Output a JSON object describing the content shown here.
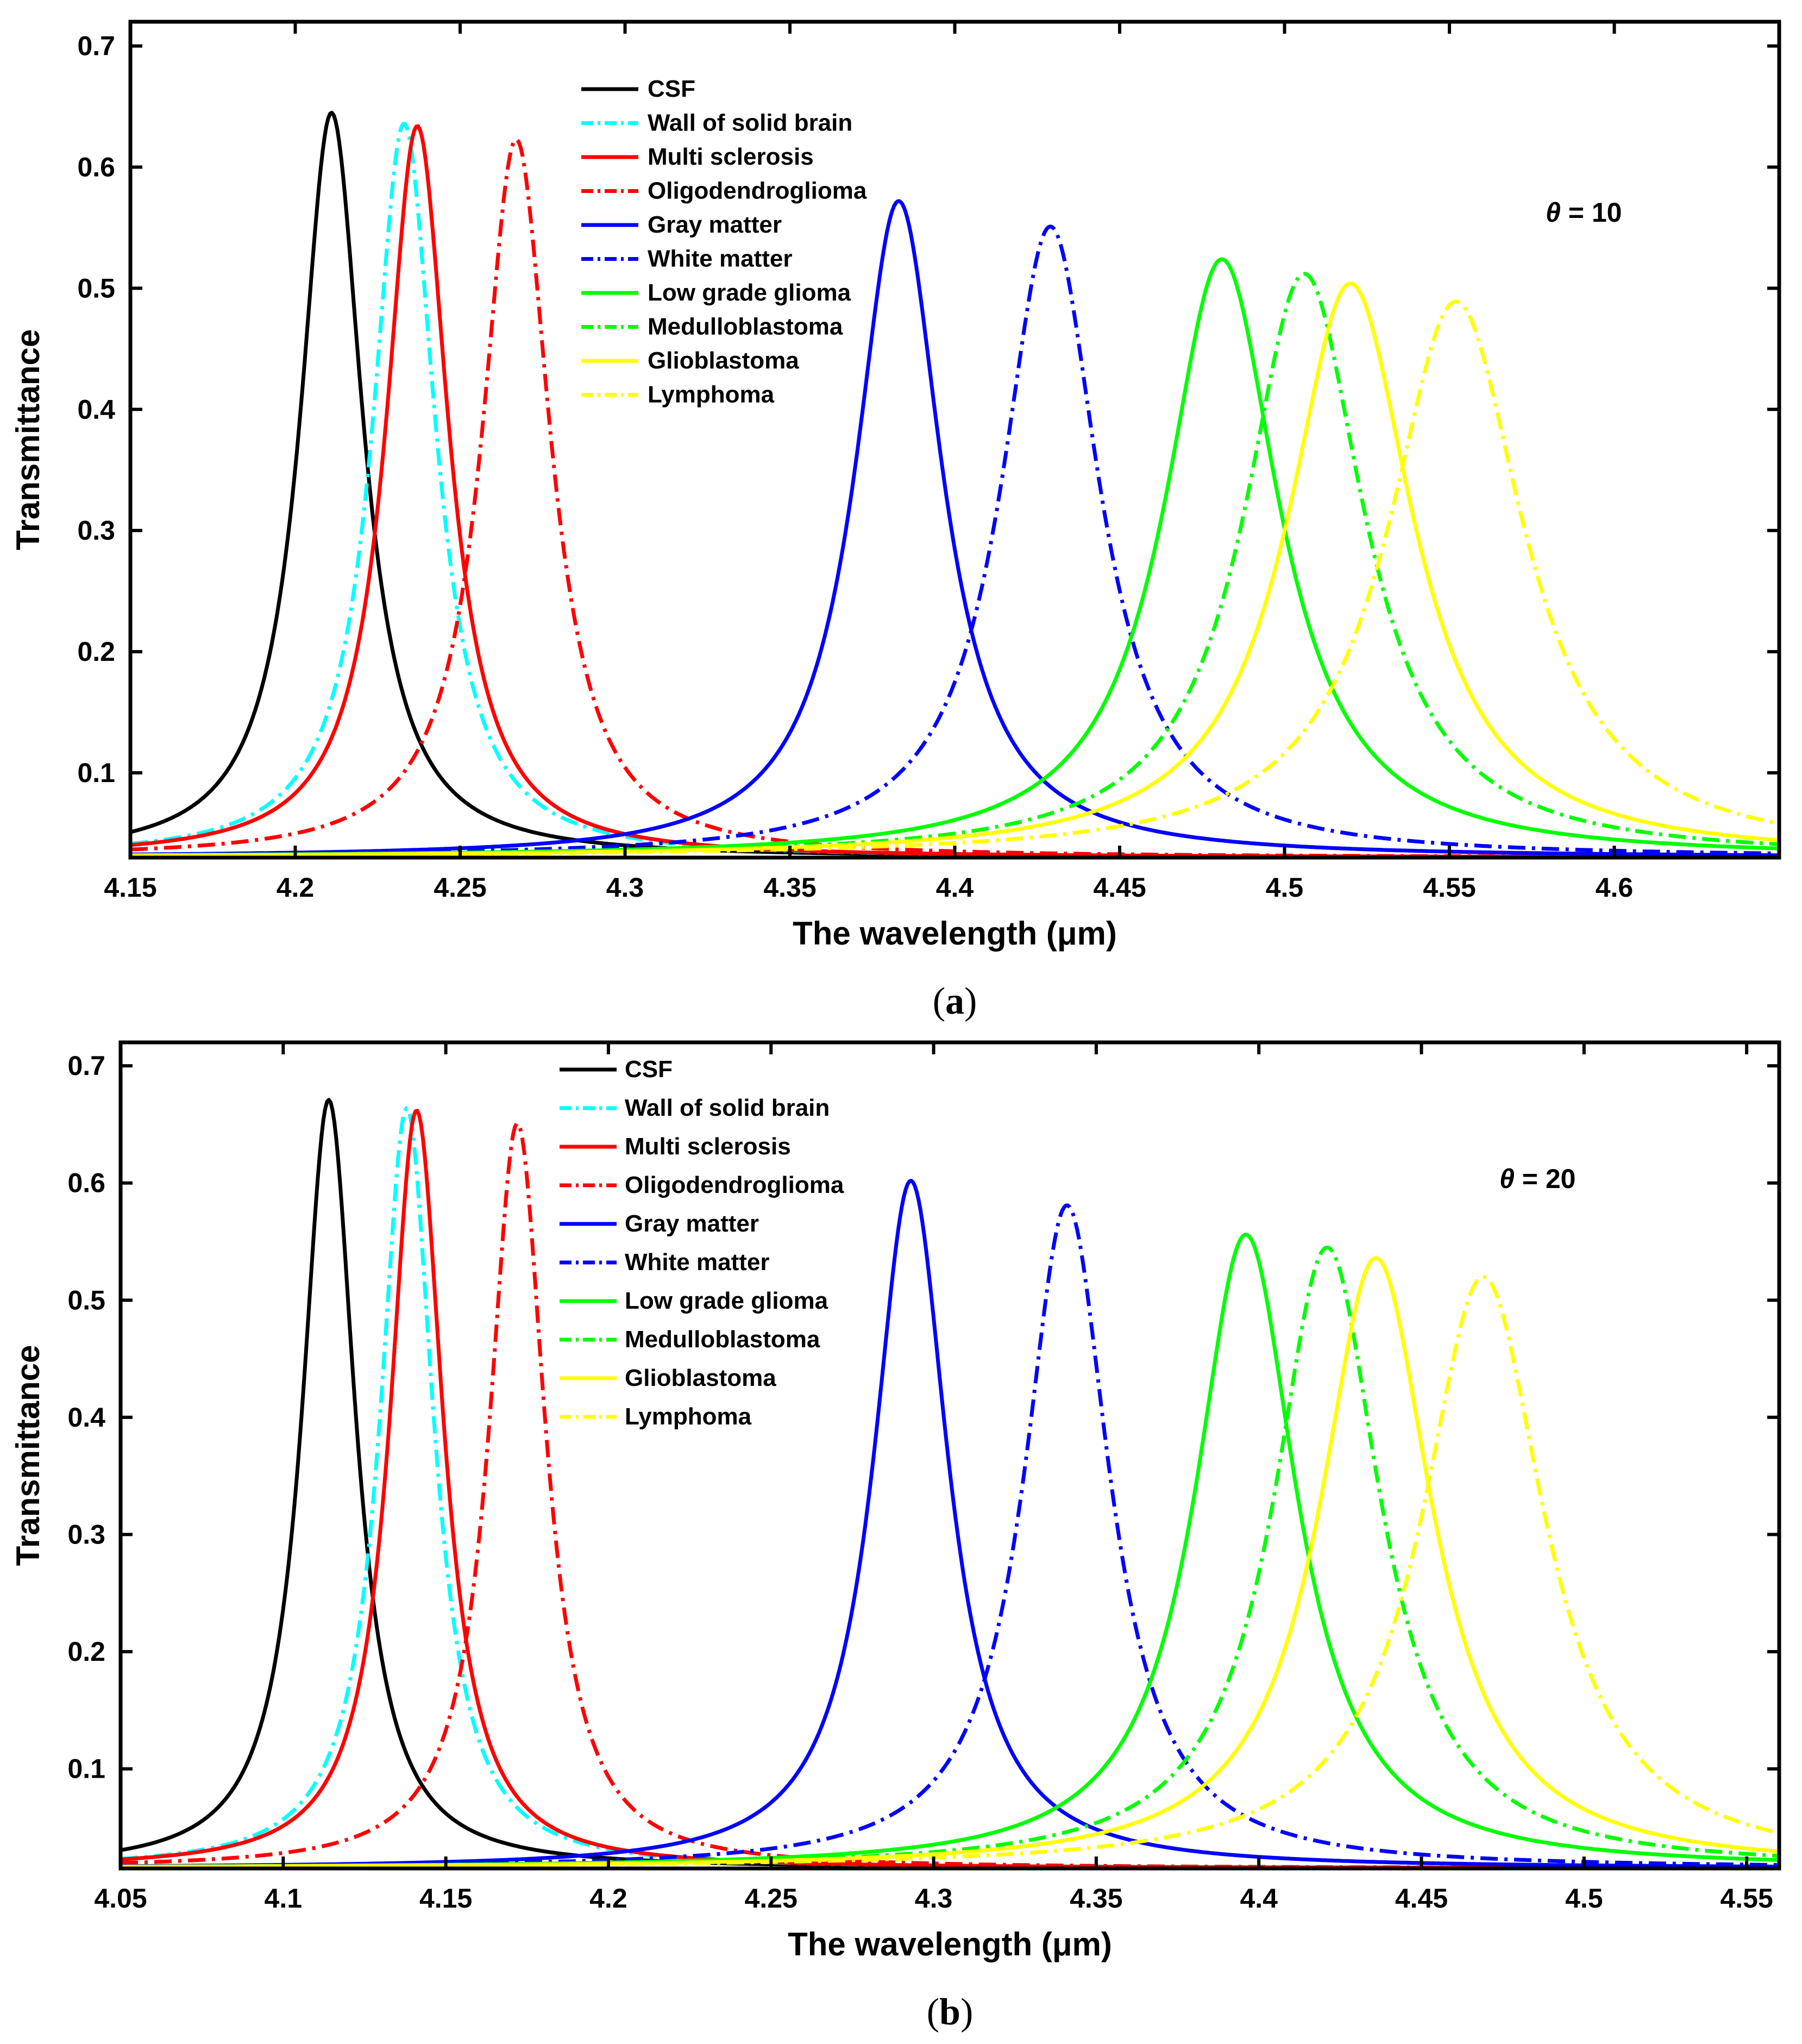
{
  "chart_data": [
    {
      "type": "line",
      "panel": "a",
      "caption": {
        "open": "(",
        "letter": "a",
        "close": ")"
      },
      "xlabel": "The wavelength (μm)",
      "ylabel": "Transmittance",
      "annotation": {
        "symbol": "θ",
        "text": " = 10"
      },
      "xlim": [
        4.15,
        4.65
      ],
      "ylim": [
        0.03,
        0.72
      ],
      "xticks": [
        4.15,
        4.2,
        4.25,
        4.3,
        4.35,
        4.4,
        4.45,
        4.5,
        4.55,
        4.6
      ],
      "xtick_labels": [
        "4.15",
        "4.2",
        "4.25",
        "4.3",
        "4.35",
        "4.4",
        "4.45",
        "4.5",
        "4.55",
        "4.6"
      ],
      "yticks": [
        0.1,
        0.2,
        0.3,
        0.4,
        0.5,
        0.6,
        0.7
      ],
      "ytick_labels": [
        "0.1",
        "0.2",
        "0.3",
        "0.4",
        "0.5",
        "0.6",
        "0.7"
      ],
      "legend_position": "top-center",
      "series": [
        {
          "name": "CSF",
          "color": "#000000",
          "dash": "solid",
          "peak_x": 4.211,
          "peak_y": 0.645,
          "hwhm": 0.0115
        },
        {
          "name": "Wall of solid brain",
          "color": "#00FFFF",
          "dash": "dashdot",
          "peak_x": 4.233,
          "peak_y": 0.636,
          "hwhm": 0.0115
        },
        {
          "name": "Multi sclerosis",
          "color": "#FF0000",
          "dash": "solid",
          "peak_x": 4.237,
          "peak_y": 0.634,
          "hwhm": 0.0115
        },
        {
          "name": "Oligodendroglioma",
          "color": "#FF0000",
          "dash": "dashdot",
          "peak_x": 4.267,
          "peak_y": 0.623,
          "hwhm": 0.0125
        },
        {
          "name": "Gray matter",
          "color": "#0000FF",
          "dash": "solid",
          "peak_x": 4.383,
          "peak_y": 0.572,
          "hwhm": 0.016
        },
        {
          "name": "White matter",
          "color": "#0000FF",
          "dash": "dashdot",
          "peak_x": 4.429,
          "peak_y": 0.551,
          "hwhm": 0.018
        },
        {
          "name": "Low grade glioma",
          "color": "#00FF00",
          "dash": "solid",
          "peak_x": 4.481,
          "peak_y": 0.524,
          "hwhm": 0.021
        },
        {
          "name": "Medulloblastoma",
          "color": "#00FF00",
          "dash": "dashdot",
          "peak_x": 4.506,
          "peak_y": 0.512,
          "hwhm": 0.022
        },
        {
          "name": "Glioblastoma",
          "color": "#FFFF00",
          "dash": "solid",
          "peak_x": 4.52,
          "peak_y": 0.504,
          "hwhm": 0.023
        },
        {
          "name": "Lymphoma",
          "color": "#FFFF00",
          "dash": "dashdot",
          "peak_x": 4.552,
          "peak_y": 0.489,
          "hwhm": 0.025
        }
      ]
    },
    {
      "type": "line",
      "panel": "b",
      "caption": {
        "open": "(",
        "letter": "b",
        "close": ")"
      },
      "xlabel": "The wavelength (μm)",
      "ylabel": "Transmittance",
      "annotation": {
        "symbol": "θ",
        "text": " = 20"
      },
      "xlim": [
        4.05,
        4.56
      ],
      "ylim": [
        0.015,
        0.72
      ],
      "xticks": [
        4.05,
        4.1,
        4.15,
        4.2,
        4.25,
        4.3,
        4.35,
        4.4,
        4.45,
        4.5,
        4.55
      ],
      "xtick_labels": [
        "4.05",
        "4.1",
        "4.15",
        "4.2",
        "4.25",
        "4.3",
        "4.35",
        "4.4",
        "4.45",
        "4.5",
        "4.55"
      ],
      "yticks": [
        0.1,
        0.2,
        0.3,
        0.4,
        0.5,
        0.6,
        0.7
      ],
      "ytick_labels": [
        "0.1",
        "0.2",
        "0.3",
        "0.4",
        "0.5",
        "0.6",
        "0.7"
      ],
      "legend_position": "top-center",
      "series": [
        {
          "name": "CSF",
          "color": "#000000",
          "dash": "solid",
          "peak_x": 4.114,
          "peak_y": 0.671,
          "hwhm": 0.01
        },
        {
          "name": "Wall of solid brain",
          "color": "#00FFFF",
          "dash": "dashdot",
          "peak_x": 4.138,
          "peak_y": 0.664,
          "hwhm": 0.01
        },
        {
          "name": "Multi sclerosis",
          "color": "#FF0000",
          "dash": "solid",
          "peak_x": 4.141,
          "peak_y": 0.662,
          "hwhm": 0.01
        },
        {
          "name": "Oligodendroglioma",
          "color": "#FF0000",
          "dash": "dashdot",
          "peak_x": 4.172,
          "peak_y": 0.651,
          "hwhm": 0.0105
        },
        {
          "name": "Gray matter",
          "color": "#0000FF",
          "dash": "solid",
          "peak_x": 4.293,
          "peak_y": 0.602,
          "hwhm": 0.014
        },
        {
          "name": "White matter",
          "color": "#0000FF",
          "dash": "dashdot",
          "peak_x": 4.341,
          "peak_y": 0.581,
          "hwhm": 0.016
        },
        {
          "name": "Low grade glioma",
          "color": "#00FF00",
          "dash": "solid",
          "peak_x": 4.396,
          "peak_y": 0.556,
          "hwhm": 0.019
        },
        {
          "name": "Medulloblastoma",
          "color": "#00FF00",
          "dash": "dashdot",
          "peak_x": 4.421,
          "peak_y": 0.545,
          "hwhm": 0.02
        },
        {
          "name": "Glioblastoma",
          "color": "#FFFF00",
          "dash": "solid",
          "peak_x": 4.436,
          "peak_y": 0.536,
          "hwhm": 0.021
        },
        {
          "name": "Lymphoma",
          "color": "#FFFF00",
          "dash": "dashdot",
          "peak_x": 4.469,
          "peak_y": 0.52,
          "hwhm": 0.023
        }
      ]
    }
  ]
}
